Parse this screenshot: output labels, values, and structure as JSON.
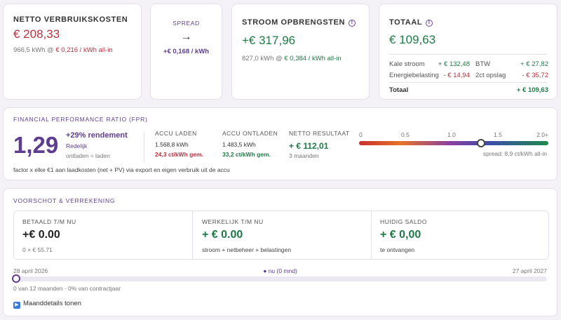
{
  "netto": {
    "title": "NETTO VERBRUIKSKOSTEN",
    "value": "€ 208,33",
    "kwh": "966,5 kWh @",
    "rate": "€ 0,216 / kWh all-in"
  },
  "spread": {
    "title": "SPREAD",
    "arrow": "→",
    "value": "+€ 0,168 / kWh"
  },
  "opbrengst": {
    "title": "STROOM OPBRENGSTEN",
    "value": "+€ 317,96",
    "kwh": "827,0 kWh @",
    "rate": "€ 0,384 / kWh all-in"
  },
  "totaal": {
    "title": "TOTAAL",
    "value": "€ 109,63",
    "items": [
      {
        "label": "Kale stroom",
        "value": "+ € 132,48"
      },
      {
        "label": "BTW",
        "value": "+ € 27,82"
      },
      {
        "label": "Energiebelasting",
        "value": "- € 14,94"
      },
      {
        "label": "2ct opslag",
        "value": "- € 35,72"
      }
    ],
    "sum_label": "Totaal",
    "sum_value": "+ € 109,63"
  },
  "fpr": {
    "title": "FINANCIAL PERFORMANCE RATIO (FPR)",
    "ratio": "1,29",
    "rendement": "+29% rendement",
    "rating": "Redelijk",
    "formula": "ontladen ÷ laden",
    "laden_label": "ACCU LADEN",
    "laden_kwh": "1.568,8 kWh",
    "laden_rate": "24,3 ct/kWh gem.",
    "ontladen_label": "ACCU ONTLADEN",
    "ontladen_kwh": "1.483,5 kWh",
    "ontladen_rate": "33,2 ct/kWh gem.",
    "netto_label": "NETTO RESULTAAT",
    "netto_value": "+ € 112,01",
    "netto_period": "3 maanden",
    "scale_labels": [
      "0",
      "0.5",
      "1.0",
      "1.5",
      "2.0+"
    ],
    "scale_value": 1.29,
    "scale_max": 2.0,
    "spread_note": "spread: 8,9 ct/kWh all-in",
    "footnote": "factor x elke €1 aan laadkosten (net + PV) via export en eigen verbruik uit de accu"
  },
  "voorschot": {
    "title": "VOORSCHOT & VERREKENING",
    "betaald_label": "BETAALD T/M NU",
    "betaald_value": "+€ 0.00",
    "betaald_sub": "0 × € 55.71",
    "werkelijk_label": "WERKELIJK T/M NU",
    "werkelijk_value": "+ € 0.00",
    "werkelijk_sub": "stroom + netbeheer + belastingen",
    "saldo_label": "HUIDIG SALDO",
    "saldo_value": "+ € 0,00",
    "saldo_sub": "te ontvangen",
    "start_date": "28 april 2026",
    "now_label": "● nu (0 mnd)",
    "end_date": "27 april 2027",
    "progress_fraction": 0,
    "progress_text": "0 van 12 maanden · 0% van contractjaar",
    "details_label": "Maanddetails tonen"
  }
}
